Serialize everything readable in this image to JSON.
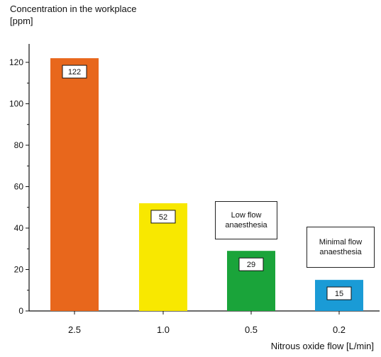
{
  "chart_data": {
    "type": "bar",
    "ylabel_line1": "Concentration in the workplace",
    "ylabel_line2": "[ppm]",
    "xlabel": "Nitrous oxide flow [L/min]",
    "categories": [
      "2.5",
      "1.0",
      "0.5",
      "0.2"
    ],
    "values": [
      122,
      52,
      29,
      15
    ],
    "colors": [
      "#e8671c",
      "#f8e800",
      "#1aa43a",
      "#1a9bd6"
    ],
    "ylim": [
      0,
      130
    ],
    "yticks": [
      0,
      20,
      40,
      60,
      80,
      100,
      120
    ],
    "annotations": [
      {
        "text_line1": "Low flow",
        "text_line2": "anaesthesia",
        "category": "0.5"
      },
      {
        "text_line1": "Minimal flow",
        "text_line2": "anaesthesia",
        "category": "0.2"
      }
    ],
    "grid": false
  }
}
